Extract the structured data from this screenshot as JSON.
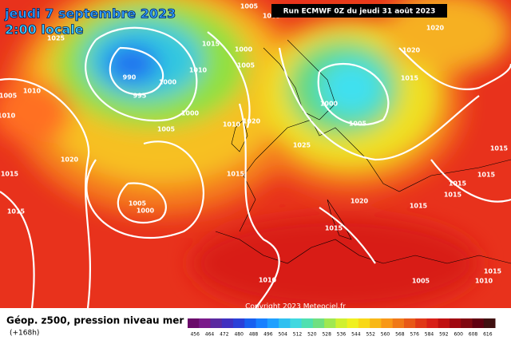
{
  "header": {
    "date": "jeudi 7 septembre 2023",
    "time": "2:00 locale",
    "run": "Run ECMWF 0Z du jeudi 31 août 2023"
  },
  "footer": {
    "title": "Géop. z500, pression niveau mer",
    "step": "(+168h)",
    "copyright": "Copyright 2023 Meteociel.fr"
  },
  "isobar_labels": [
    "1005",
    "1005",
    "1025",
    "1015",
    "1000",
    "1005",
    "990",
    "1000",
    "1010",
    "995",
    "1000",
    "1005",
    "1005",
    "1010",
    "1010",
    "1010",
    "1020",
    "1000",
    "1005",
    "1025",
    "1020",
    "1015",
    "1015",
    "1005",
    "1000",
    "1020",
    "1020",
    "1015",
    "1015",
    "1015",
    "1015",
    "1015",
    "1015",
    "1020",
    "1015",
    "1015",
    "1010",
    "1005",
    "1010",
    "1015"
  ],
  "scale_labels": [
    "456",
    "464",
    "472",
    "480",
    "488",
    "496",
    "504",
    "512",
    "520",
    "528",
    "536",
    "544",
    "552",
    "560",
    "568",
    "576",
    "584",
    "592",
    "600",
    "608",
    "616"
  ]
}
